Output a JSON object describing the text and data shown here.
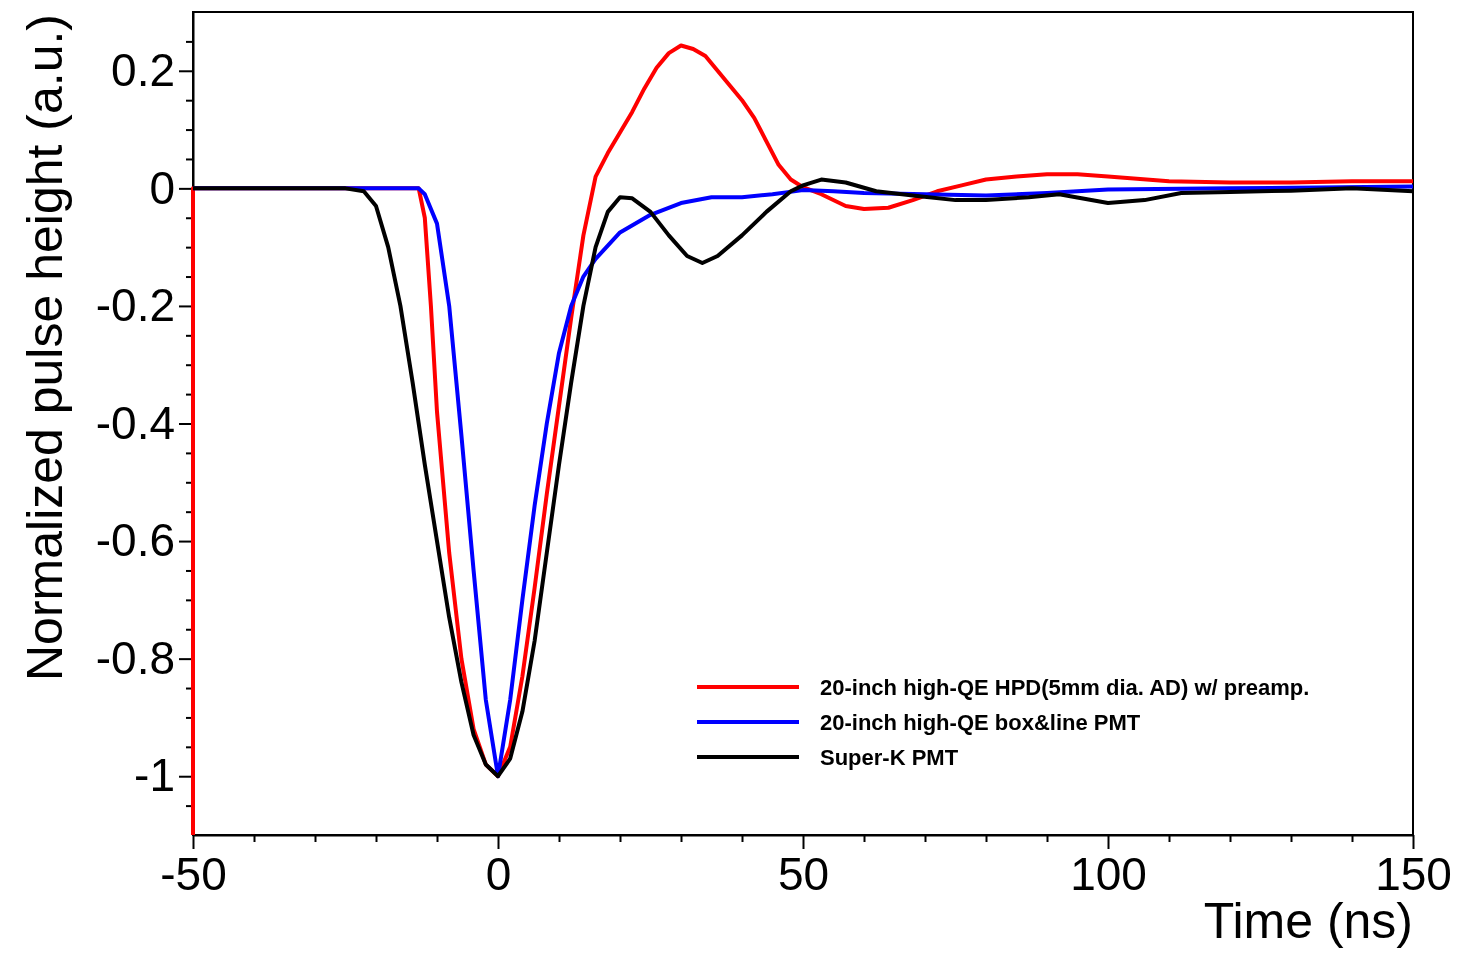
{
  "chart_data": {
    "type": "line",
    "xlabel": "Time (ns)",
    "ylabel": "Normalized pulse height (a.u.)",
    "xlim": [
      -50,
      150
    ],
    "ylim": [
      -1.1,
      0.3
    ],
    "xticks": [
      -50,
      {
        "value": -40,
        "label": null
      },
      {
        "value": -30,
        "label": null
      },
      {
        "value": -20,
        "label": null
      },
      {
        "value": -10,
        "label": null
      },
      0,
      {
        "value": 10,
        "label": null
      },
      {
        "value": 20,
        "label": null
      },
      {
        "value": 30,
        "label": null
      },
      {
        "value": 40,
        "label": null
      },
      50,
      {
        "value": 60,
        "label": null
      },
      {
        "value": 70,
        "label": null
      },
      {
        "value": 80,
        "label": null
      },
      {
        "value": 90,
        "label": null
      },
      100,
      {
        "value": 110,
        "label": null
      },
      {
        "value": 120,
        "label": null
      },
      {
        "value": 130,
        "label": null
      },
      {
        "value": 140,
        "label": null
      },
      150
    ],
    "yticks": [
      {
        "value": -1.05,
        "label": null
      },
      -1,
      {
        "value": -0.95,
        "label": null
      },
      {
        "value": -0.9,
        "label": null
      },
      {
        "value": -0.85,
        "label": null
      },
      -0.8,
      {
        "value": -0.75,
        "label": null
      },
      {
        "value": -0.7,
        "label": null
      },
      {
        "value": -0.65,
        "label": null
      },
      -0.6,
      {
        "value": -0.55,
        "label": null
      },
      {
        "value": -0.5,
        "label": null
      },
      {
        "value": -0.45,
        "label": null
      },
      -0.4,
      {
        "value": -0.35,
        "label": null
      },
      {
        "value": -0.3,
        "label": null
      },
      {
        "value": -0.25,
        "label": null
      },
      -0.2,
      {
        "value": -0.15,
        "label": null
      },
      {
        "value": -0.1,
        "label": null
      },
      {
        "value": -0.05,
        "label": null
      },
      0,
      {
        "value": 0.05,
        "label": null
      },
      {
        "value": 0.1,
        "label": null
      },
      {
        "value": 0.15,
        "label": null
      },
      0.2,
      {
        "value": 0.25,
        "label": null
      }
    ],
    "legend": "bottom right",
    "grid": false,
    "marker": "none",
    "line_style": "solid",
    "series": [
      {
        "name": "20-inch high-QE HPD(5mm dia. AD) w/ preamp.",
        "color": "#ff0000",
        "x": [
          -50,
          -50,
          -30,
          -13,
          -12,
          -11,
          -10,
          -8,
          -6,
          -4,
          -2,
          0,
          2,
          4,
          6,
          8,
          10,
          12,
          14,
          16,
          18,
          20,
          22,
          24,
          26,
          28,
          30,
          32,
          34,
          36,
          38,
          40,
          42,
          44,
          46,
          48,
          50,
          53,
          57,
          60,
          64,
          68,
          72,
          76,
          80,
          85,
          90,
          95,
          100,
          110,
          120,
          130,
          140,
          150
        ],
        "values": [
          -1.1,
          0,
          0,
          0,
          -0.05,
          -0.2,
          -0.38,
          -0.62,
          -0.8,
          -0.92,
          -0.98,
          -1,
          -0.95,
          -0.83,
          -0.68,
          -0.52,
          -0.37,
          -0.22,
          -0.08,
          0.02,
          0.06,
          0.095,
          0.13,
          0.17,
          0.205,
          0.23,
          0.243,
          0.237,
          0.225,
          0.2,
          0.175,
          0.15,
          0.12,
          0.08,
          0.04,
          0.015,
          0.002,
          -0.01,
          -0.03,
          -0.035,
          -0.033,
          -0.02,
          -0.005,
          0.005,
          0.015,
          0.02,
          0.024,
          0.024,
          0.02,
          0.012,
          0.01,
          0.01,
          0.012,
          0.012
        ]
      },
      {
        "name": "20-inch high-QE box&line PMT",
        "color": "#0000ff",
        "x": [
          -50,
          -30,
          -13,
          -12,
          -10,
          -8,
          -6,
          -4,
          -2,
          0,
          2,
          4,
          6,
          8,
          10,
          12,
          14,
          16,
          20,
          25,
          30,
          35,
          40,
          45,
          50,
          55,
          60,
          70,
          80,
          90,
          100,
          120,
          150
        ],
        "values": [
          0,
          0,
          0,
          -0.01,
          -0.06,
          -0.2,
          -0.42,
          -0.65,
          -0.87,
          -1,
          -0.87,
          -0.7,
          -0.54,
          -0.4,
          -0.28,
          -0.2,
          -0.15,
          -0.12,
          -0.075,
          -0.045,
          -0.025,
          -0.015,
          -0.015,
          -0.01,
          -0.003,
          -0.005,
          -0.008,
          -0.01,
          -0.012,
          -0.008,
          -0.002,
          0,
          0.003
        ]
      },
      {
        "name": "Super-K PMT",
        "color": "#000000",
        "x": [
          -50,
          -25,
          -22,
          -20,
          -18,
          -16,
          -14,
          -12,
          -10,
          -8,
          -6,
          -4,
          -2,
          0,
          2,
          4,
          6,
          8,
          10,
          12,
          14,
          16,
          18,
          20,
          22,
          25,
          28,
          31,
          33.5,
          36,
          40,
          44,
          48,
          50,
          53,
          57,
          62,
          68,
          75,
          80,
          87,
          92,
          100,
          106,
          112,
          120,
          130,
          140,
          150
        ],
        "values": [
          0,
          0,
          -0.005,
          -0.03,
          -0.1,
          -0.2,
          -0.33,
          -0.47,
          -0.6,
          -0.73,
          -0.84,
          -0.93,
          -0.98,
          -1,
          -0.97,
          -0.89,
          -0.77,
          -0.62,
          -0.47,
          -0.33,
          -0.2,
          -0.1,
          -0.04,
          -0.015,
          -0.017,
          -0.04,
          -0.08,
          -0.115,
          -0.127,
          -0.115,
          -0.08,
          -0.04,
          -0.005,
          0.005,
          0.015,
          0.01,
          -0.005,
          -0.012,
          -0.02,
          -0.02,
          -0.015,
          -0.01,
          -0.025,
          -0.02,
          -0.008,
          -0.006,
          -0.004,
          0,
          -0.005
        ]
      }
    ]
  }
}
